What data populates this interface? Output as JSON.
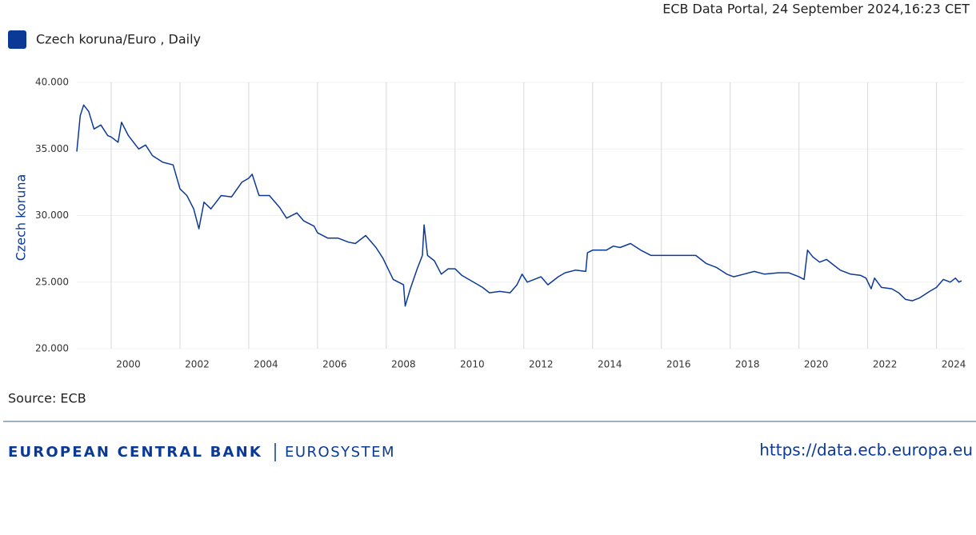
{
  "header": "ECB Data Portal, 24 September 2024,16:23 CET",
  "chart_data": {
    "type": "line",
    "y_label": "Czech koruna",
    "grid": true,
    "xlim": [
      1999,
      2024.8
    ],
    "xticks": [
      2000,
      2002,
      2004,
      2006,
      2008,
      2010,
      2012,
      2014,
      2016,
      2018,
      2020,
      2022,
      2024
    ],
    "ylim": [
      20,
      40
    ],
    "yticks": [
      {
        "value": 20,
        "label": "20.000"
      },
      {
        "value": 25,
        "label": "25.000"
      },
      {
        "value": 30,
        "label": "30.000"
      },
      {
        "value": 35,
        "label": "35.000"
      },
      {
        "value": 40,
        "label": "40.000"
      }
    ],
    "x": [
      1999.0,
      1999.1,
      1999.2,
      1999.35,
      1999.5,
      1999.7,
      1999.9,
      2000.0,
      2000.2,
      2000.3,
      2000.5,
      2000.8,
      2001.0,
      2001.2,
      2001.5,
      2001.8,
      2002.0,
      2002.2,
      2002.4,
      2002.55,
      2002.7,
      2002.9,
      2003.2,
      2003.5,
      2003.8,
      2004.0,
      2004.1,
      2004.3,
      2004.6,
      2004.9,
      2005.1,
      2005.4,
      2005.6,
      2005.9,
      2006.0,
      2006.3,
      2006.6,
      2006.9,
      2007.1,
      2007.4,
      2007.7,
      2007.9,
      2008.2,
      2008.5,
      2008.55,
      2008.7,
      2008.9,
      2009.05,
      2009.1,
      2009.2,
      2009.4,
      2009.6,
      2009.8,
      2010.0,
      2010.2,
      2010.4,
      2010.6,
      2010.8,
      2011.0,
      2011.3,
      2011.6,
      2011.8,
      2011.95,
      2012.1,
      2012.3,
      2012.5,
      2012.7,
      2013.0,
      2013.2,
      2013.5,
      2013.8,
      2013.85,
      2014.0,
      2014.4,
      2014.6,
      2014.8,
      2015.1,
      2015.4,
      2015.7,
      2016.0,
      2016.5,
      2017.0,
      2017.3,
      2017.6,
      2017.9,
      2018.1,
      2018.4,
      2018.7,
      2019.0,
      2019.4,
      2019.7,
      2020.0,
      2020.15,
      2020.25,
      2020.4,
      2020.6,
      2020.8,
      2021.0,
      2021.2,
      2021.5,
      2021.8,
      2021.95,
      2022.1,
      2022.2,
      2022.4,
      2022.7,
      2022.9,
      2023.1,
      2023.3,
      2023.5,
      2023.8,
      2024.0,
      2024.2,
      2024.4,
      2024.55,
      2024.65,
      2024.73
    ],
    "series": [
      {
        "name": "Czech koruna/Euro , Daily",
        "color": "#0b3a96",
        "values": [
          34.8,
          37.5,
          38.3,
          37.8,
          36.5,
          36.8,
          36.0,
          35.9,
          35.5,
          37.0,
          36.0,
          35.0,
          35.3,
          34.5,
          34.0,
          33.8,
          32.0,
          31.5,
          30.5,
          29.0,
          31.0,
          30.5,
          31.5,
          31.4,
          32.5,
          32.8,
          33.1,
          31.5,
          31.5,
          30.6,
          29.8,
          30.2,
          29.6,
          29.2,
          28.7,
          28.3,
          28.3,
          28.0,
          27.9,
          28.5,
          27.6,
          26.8,
          25.2,
          24.8,
          23.2,
          24.5,
          26.0,
          27.0,
          29.3,
          27.0,
          26.6,
          25.6,
          26.0,
          26.0,
          25.5,
          25.2,
          24.9,
          24.6,
          24.2,
          24.3,
          24.2,
          24.8,
          25.6,
          25.0,
          25.2,
          25.4,
          24.8,
          25.4,
          25.7,
          25.9,
          25.8,
          27.2,
          27.4,
          27.4,
          27.7,
          27.6,
          27.9,
          27.4,
          27.0,
          27.0,
          27.0,
          27.0,
          26.4,
          26.1,
          25.6,
          25.4,
          25.6,
          25.8,
          25.6,
          25.7,
          25.7,
          25.4,
          25.2,
          27.4,
          26.9,
          26.5,
          26.7,
          26.3,
          25.9,
          25.6,
          25.5,
          25.3,
          24.5,
          25.3,
          24.6,
          24.5,
          24.2,
          23.7,
          23.6,
          23.8,
          24.3,
          24.6,
          25.2,
          25.0,
          25.3,
          25.0,
          25.1
        ]
      }
    ]
  },
  "source": "Source: ECB",
  "footer": {
    "bank": "EUROPEAN CENTRAL BANK",
    "system": "EUROSYSTEM",
    "url": "https://data.ecb.europa.eu"
  }
}
